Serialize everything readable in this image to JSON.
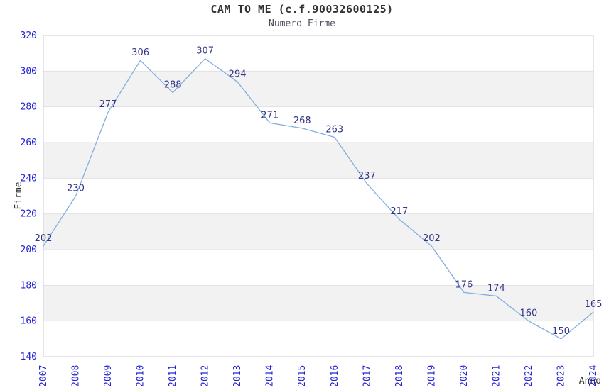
{
  "chart_data": {
    "type": "line",
    "title": "CAM TO ME (c.f.90032600125)",
    "subtitle": "Numero Firme",
    "xlabel": "Anno",
    "ylabel": "Firme",
    "x": [
      "2007",
      "2008",
      "2009",
      "2010",
      "2011",
      "2012",
      "2013",
      "2014",
      "2015",
      "2016",
      "2017",
      "2018",
      "2019",
      "2020",
      "2021",
      "2022",
      "2023",
      "2024"
    ],
    "values": [
      202,
      230,
      277,
      306,
      288,
      307,
      294,
      271,
      268,
      263,
      237,
      217,
      202,
      176,
      174,
      160,
      150,
      165
    ],
    "ylim": [
      140,
      320
    ],
    "ytick_step": 20,
    "yticks": [
      140,
      160,
      180,
      200,
      220,
      240,
      260,
      280,
      300,
      320
    ],
    "grid": "horizontal-gridlines-with-alternating-bands",
    "legend": "none",
    "point_markers": "none",
    "data_labels": "above-points",
    "colors": {
      "line": "#85ade0",
      "point_label": "#333388",
      "tick_label": "#2323d6",
      "axis_title": "#333333",
      "title": "#333333",
      "subtitle": "#4d4d5e",
      "band": "#f2f2f2",
      "gridline": "#e2e2e2",
      "plot_border": "#cccccc",
      "background": "#ffffff"
    }
  }
}
